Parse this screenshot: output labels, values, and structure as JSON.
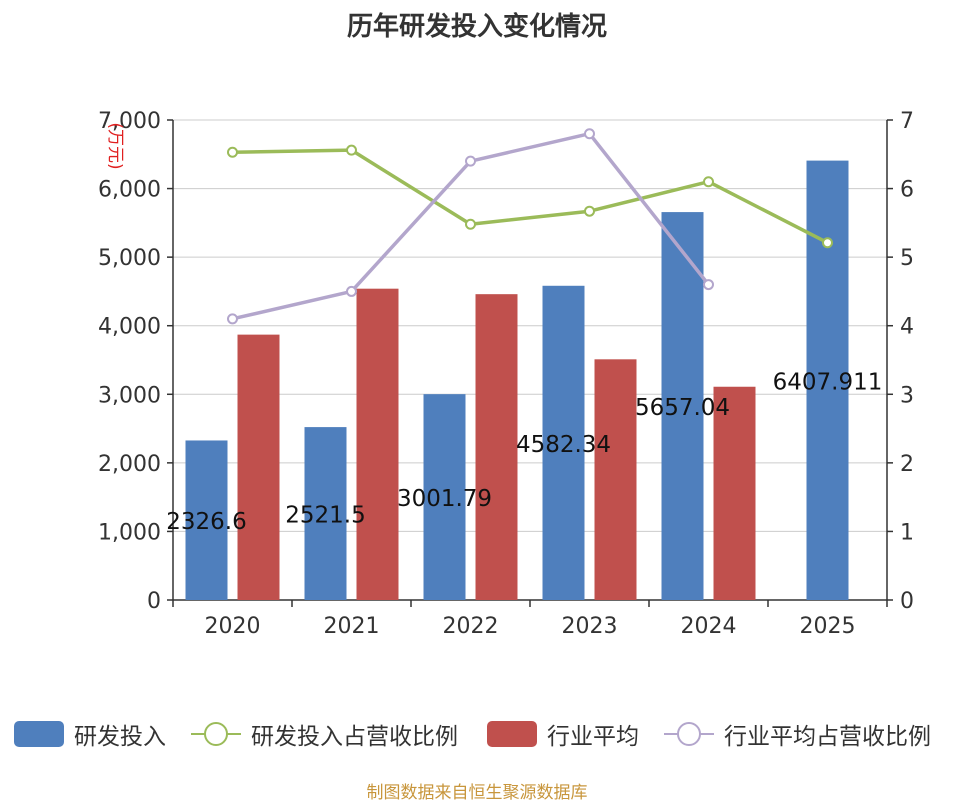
{
  "chart_data": {
    "type": "bar",
    "title": "历年研发投入变化情况",
    "y_unit_label": "(万元)",
    "categories": [
      "2020",
      "2021",
      "2022",
      "2023",
      "2024",
      "2025"
    ],
    "left_axis": {
      "min": 0,
      "max": 7000,
      "ticks": [
        "0",
        "1,000",
        "2,000",
        "3,000",
        "4,000",
        "5,000",
        "6,000",
        "7,000"
      ]
    },
    "right_axis": {
      "min": 0,
      "max": 7,
      "ticks": [
        "0",
        "1",
        "2",
        "3",
        "4",
        "5",
        "6",
        "7"
      ]
    },
    "grid": true,
    "legend_position": "bottom",
    "series": [
      {
        "name": "研发投入",
        "kind": "bar",
        "axis": "left",
        "color": "#4f7fbd",
        "values": [
          2326.6,
          2521.5,
          3001.79,
          4582.34,
          5657.04,
          6407.911
        ],
        "labels": [
          "2326.6",
          "2521.5",
          "3001.79",
          "4582.34",
          "5657.04",
          "6407.911"
        ]
      },
      {
        "name": "研发投入占营收比例",
        "kind": "line",
        "axis": "right",
        "color": "#9bbb59",
        "values": [
          6.53,
          6.56,
          5.48,
          5.67,
          6.1,
          5.21
        ]
      },
      {
        "name": "行业平均",
        "kind": "bar",
        "axis": "left",
        "color": "#c0504d",
        "values": [
          3870,
          4540,
          4460,
          3510,
          3110,
          null
        ]
      },
      {
        "name": "行业平均占营收比例",
        "kind": "line",
        "axis": "right",
        "color": "#b3a6cc",
        "values": [
          4.1,
          4.5,
          6.4,
          6.8,
          4.6,
          null
        ]
      }
    ]
  },
  "legend": {
    "item0": "研发投入",
    "item1": "研发投入占营收比例",
    "item2": "行业平均",
    "item3": "行业平均占营收比例"
  },
  "footer": {
    "source": "制图数据来自恒生聚源数据库"
  },
  "colors": {
    "bar1": "#4f7fbd",
    "line1": "#9bbb59",
    "bar2": "#c0504d",
    "line2": "#b3a6cc"
  }
}
